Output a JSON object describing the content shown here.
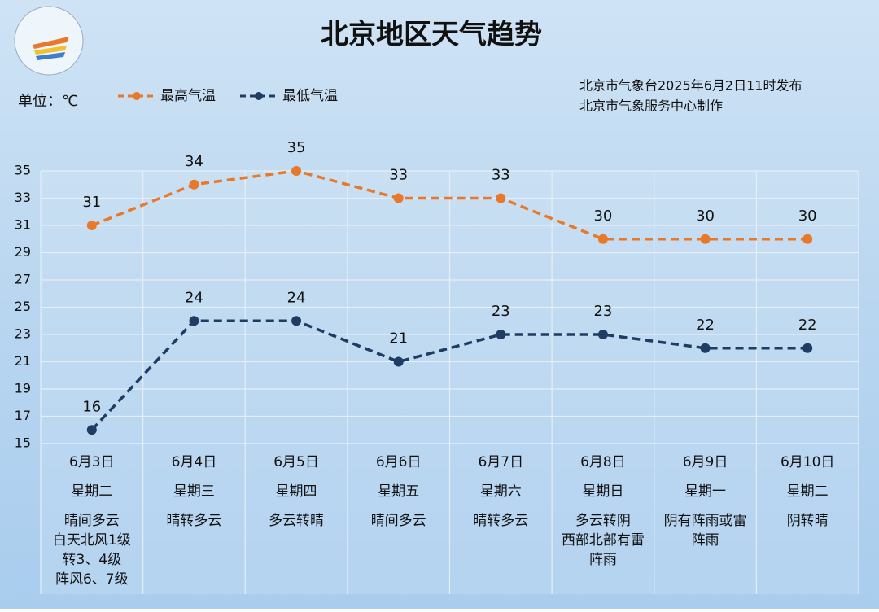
{
  "chart_data": {
    "type": "line",
    "title": "北京地区天气趋势",
    "unit_label": "单位：℃",
    "source": [
      "北京市气象台2025年6月2日11时发布",
      "北京市气象服务中心制作"
    ],
    "categories": [
      "6月3日",
      "6月4日",
      "6月5日",
      "6月6日",
      "6月7日",
      "6月8日",
      "6月9日",
      "6月10日"
    ],
    "weekdays": [
      "星期二",
      "星期三",
      "星期四",
      "星期五",
      "星期六",
      "星期日",
      "星期一",
      "星期二"
    ],
    "weather": [
      [
        "晴间多云",
        "白天北风1级",
        "转3、4级",
        "阵风6、7级"
      ],
      [
        "晴转多云"
      ],
      [
        "多云转晴"
      ],
      [
        "晴间多云"
      ],
      [
        "晴转多云"
      ],
      [
        "多云转阴",
        "西部北部有雷",
        "阵雨"
      ],
      [
        "阴有阵雨或雷",
        "阵雨"
      ],
      [
        "阴转晴"
      ]
    ],
    "series": [
      {
        "name": "最高气温",
        "color": "#e8792a",
        "values": [
          31,
          34,
          35,
          33,
          33,
          30,
          30,
          30
        ]
      },
      {
        "name": "最低气温",
        "color": "#1f3d63",
        "values": [
          16,
          24,
          24,
          21,
          23,
          23,
          22,
          22
        ]
      }
    ],
    "ylim": [
      15,
      35
    ],
    "yticks": [
      15,
      17,
      19,
      21,
      23,
      25,
      27,
      29,
      31,
      33,
      35
    ],
    "grid": true
  }
}
